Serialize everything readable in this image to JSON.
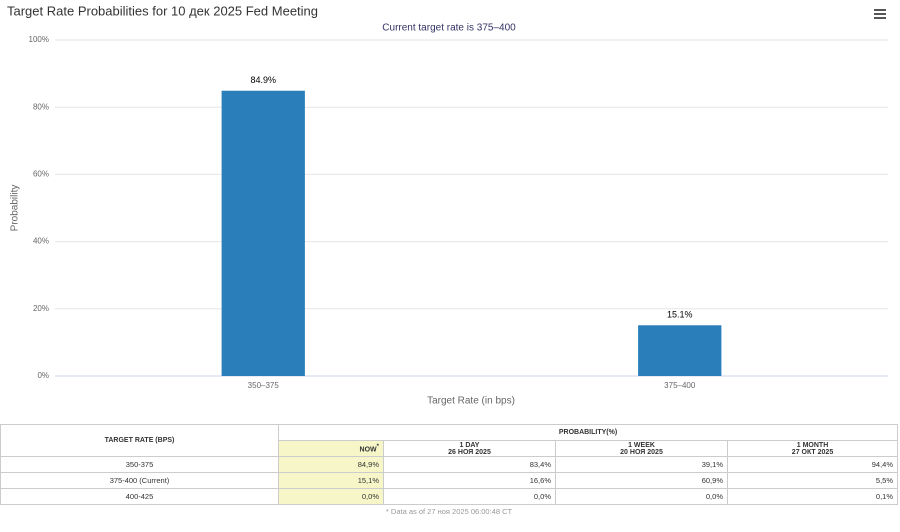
{
  "chart_data": {
    "type": "bar",
    "title": "Target Rate Probabilities for 10 дек 2025 Fed Meeting",
    "subtitle": "Current target rate is 375–400",
    "y_label": "Probability",
    "x_label": "Target Rate (in bps)",
    "categories": [
      "350–375",
      "375–400"
    ],
    "values": [
      84.9,
      15.1
    ],
    "value_labels": [
      "84.9%",
      "15.1%"
    ],
    "color": "#2a7fbb",
    "ylim": [
      0,
      100
    ],
    "yticks": [
      {
        "value": 0,
        "label": "0%"
      },
      {
        "value": 20,
        "label": "20%"
      },
      {
        "value": 40,
        "label": "40%"
      },
      {
        "value": 60,
        "label": "60%"
      },
      {
        "value": 80,
        "label": "80%"
      },
      {
        "value": 100,
        "label": "100%"
      }
    ],
    "grid": true
  },
  "table": {
    "header": {
      "rate": "TARGET RATE (BPS)",
      "group": "PROBABILITY(%)"
    },
    "columns": [
      {
        "label": "NOW",
        "note": "*"
      },
      {
        "label": "1 DAY",
        "date": "26 НОЯ 2025"
      },
      {
        "label": "1 WEEK",
        "date": "20 НОЯ 2025"
      },
      {
        "label": "1 MONTH",
        "date": "27 ОКТ 2025"
      }
    ],
    "rows": [
      [
        "350-375",
        "84,9%",
        "83,4%",
        "39,1%",
        "94,4%"
      ],
      [
        "375-400 (Current)",
        "15,1%",
        "16,6%",
        "60,9%",
        "5,5%"
      ],
      [
        "400-425",
        "0,0%",
        "0,0%",
        "0,0%",
        "0,1%"
      ]
    ],
    "footnote": "* Data as of 27 ноя 2025 06:00:48 CT"
  }
}
